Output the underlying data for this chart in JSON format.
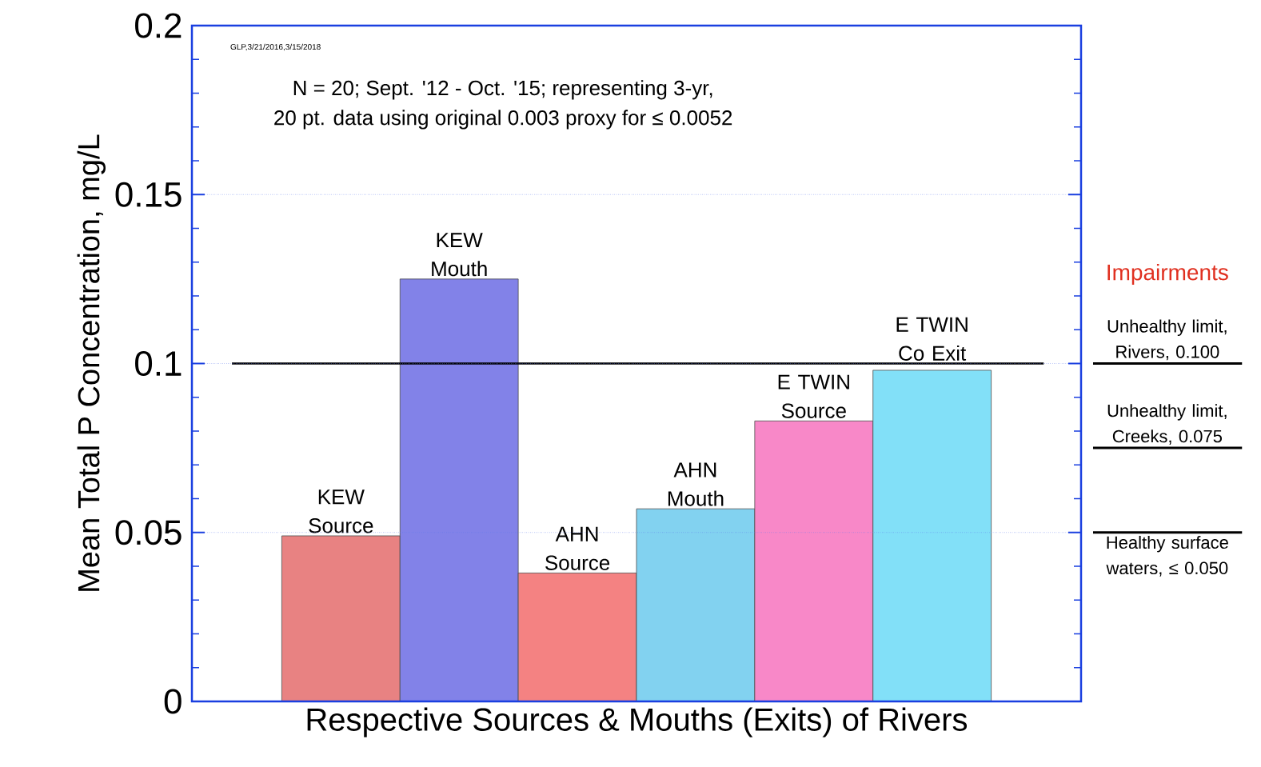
{
  "chart_data": {
    "type": "bar",
    "xlabel": "Respective Sources & Mouths (Exits) of Rivers",
    "ylabel": "Mean Total P Concentration, mg/L",
    "legend_title": "Impairments",
    "categories": [
      "KEW Source",
      "KEW Mouth",
      "AHN Source",
      "AHN Mouth",
      "E TWIN Source",
      "E TWIN Co Exit"
    ],
    "values": [
      0.049,
      0.125,
      0.038,
      0.057,
      0.083,
      0.098
    ],
    "colors": [
      "#e88282",
      "#8282e8",
      "#f48282",
      "#82d2f0",
      "#f888c8",
      "#82e0f8"
    ],
    "ylim": [
      0,
      0.2
    ],
    "yticks": [
      0,
      0.05,
      0.1,
      0.15,
      0.2
    ],
    "grid": "y",
    "ref_lines": [
      {
        "axis": "y",
        "value": 0.1,
        "color": "#000000"
      },
      {
        "axis": "y",
        "value": 0.1,
        "label": "Unhealthy limit, Rivers, 0.100"
      },
      {
        "axis": "y",
        "value": 0.075,
        "label": "Unhealthy limit, Creeks, 0.075"
      },
      {
        "axis": "y",
        "value": 0.05,
        "label": "Healthy surface waters, ≤ 0.050"
      }
    ],
    "annotations": [
      "GLP,3/21/2016,3/15/2018",
      "N = 20; Sept. '12 - Oct. '15; representing 3-yr,",
      "20 pt. data using original 0.003 proxy for ≤  0.0052"
    ]
  }
}
